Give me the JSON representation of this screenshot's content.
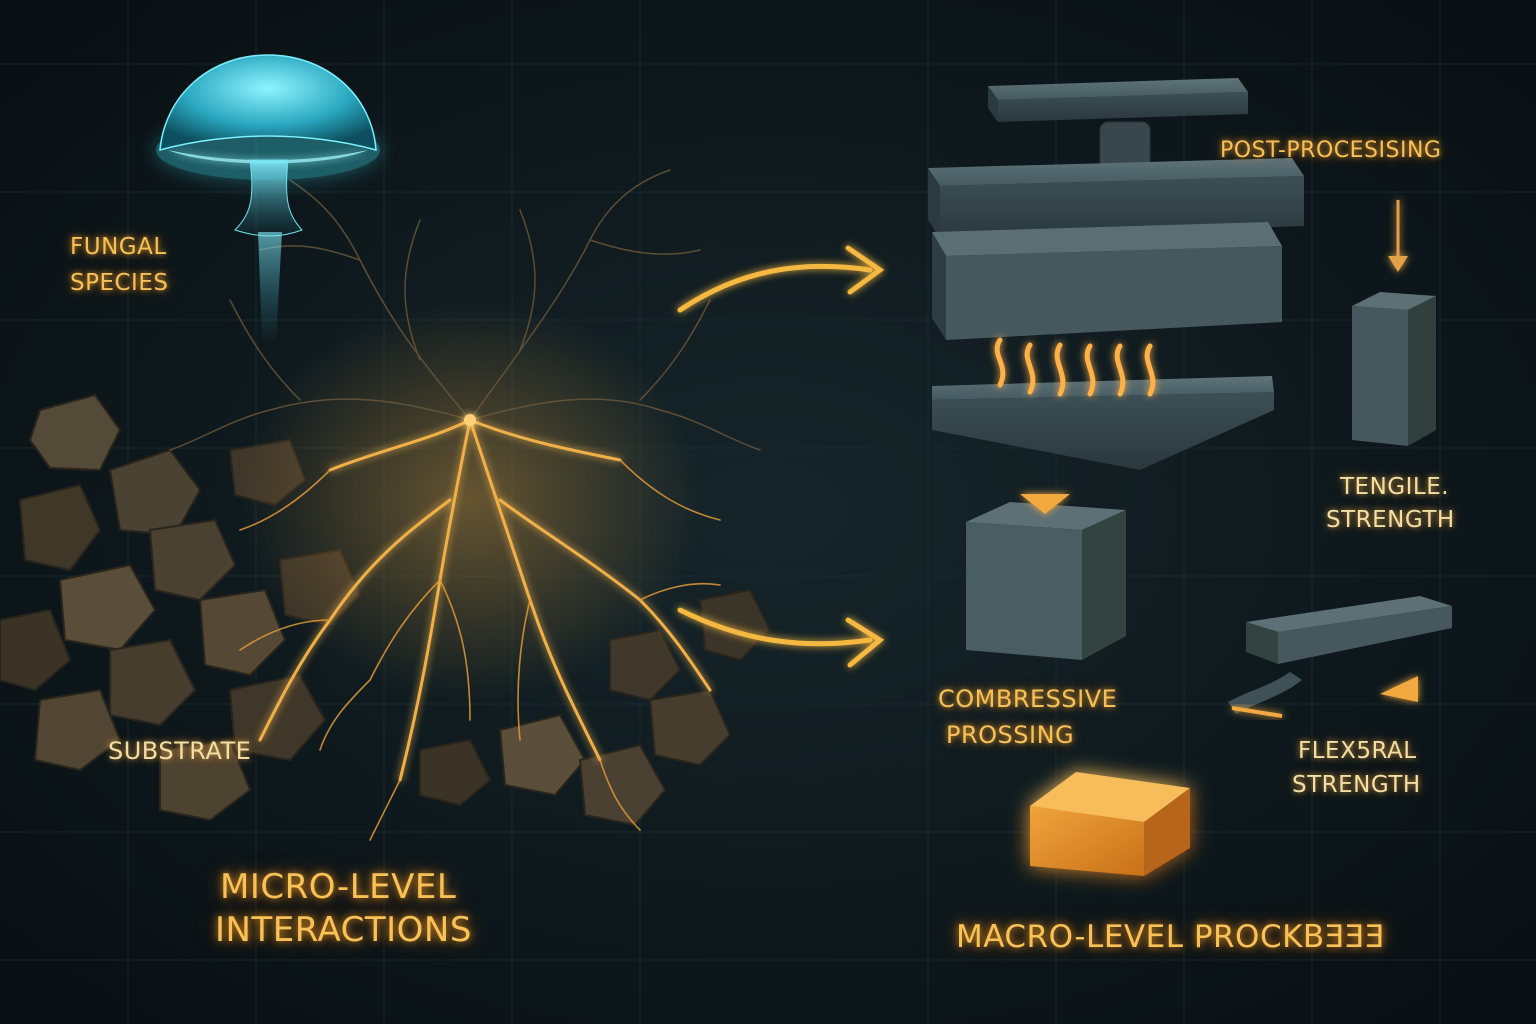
{
  "left_panel": {
    "title_line1": "MICRO-LEVEL",
    "title_line2": "INTERACTIONS",
    "labels": {
      "fungal_line1": "FUNGAL",
      "fungal_line2": "SPECIES",
      "substrate": "SUBSTRATE"
    }
  },
  "right_panel": {
    "title": "MACRO-LEVEL PROCKBƎƎƎ",
    "labels": {
      "post_processing": "POST-PROCESISING",
      "tensile_line1": "TENGILE.",
      "tensile_line2": "STRENGTH",
      "compressive_line1": "COMBRESSIVE",
      "compressive_line2": "PROSSING",
      "flexural_line1": "FLEX5RAL",
      "flexural_line2": "STRENGTH"
    }
  },
  "colors": {
    "background": "#0c1418",
    "divider": "#e8a63a",
    "glow_gold": "#f5b840",
    "mushroom_cyan": "#5fe3f0",
    "slab_steel": "#4d6066",
    "product_orange": "#e8962c"
  },
  "icons": [
    "mushroom-icon",
    "mycelium-network",
    "substrate-rocks",
    "hydraulic-press",
    "heat-waves",
    "arrow-right-icon",
    "arrow-down-icon",
    "tensile-specimen",
    "compression-cube",
    "flexural-beam",
    "final-product-block"
  ]
}
